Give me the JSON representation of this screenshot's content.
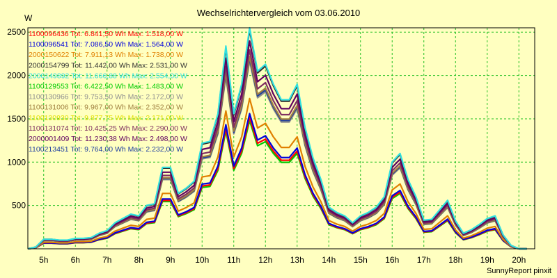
{
  "chart_data": {
    "type": "line",
    "title": "Wechselrichtervergleich vom 03.06.2010",
    "ylabel": "W",
    "footer": "SunnyReport pinxit",
    "x_tick_labels": [
      "5h",
      "6h",
      "7h",
      "8h",
      "9h",
      "10h",
      "11h",
      "12h",
      "13h",
      "14h",
      "15h",
      "16h",
      "17h",
      "18h",
      "19h",
      "20h"
    ],
    "x_ticks": [
      5,
      6,
      7,
      8,
      9,
      10,
      11,
      12,
      13,
      14,
      15,
      16,
      17,
      18,
      19,
      20
    ],
    "xlim": [
      4.5,
      20.5
    ],
    "ylim": [
      0,
      2550
    ],
    "y_ticks": [
      500,
      1000,
      1500,
      2000,
      2500
    ],
    "grid": true,
    "legend_position": "top-left",
    "x": [
      4.5,
      4.75,
      5.0,
      5.25,
      5.5,
      5.75,
      6.0,
      6.25,
      6.5,
      6.75,
      7.0,
      7.25,
      7.5,
      7.75,
      8.0,
      8.25,
      8.5,
      8.75,
      9.0,
      9.25,
      9.5,
      9.75,
      10.0,
      10.25,
      10.5,
      10.75,
      11.0,
      11.25,
      11.5,
      11.75,
      12.0,
      12.25,
      12.5,
      12.75,
      13.0,
      13.25,
      13.5,
      13.75,
      14.0,
      14.25,
      14.5,
      14.75,
      15.0,
      15.25,
      15.5,
      15.75,
      16.0,
      16.25,
      16.5,
      16.75,
      17.0,
      17.25,
      17.5,
      17.75,
      18.0,
      18.25,
      18.5,
      18.75,
      19.0,
      19.25,
      19.5,
      19.75,
      20.0,
      20.25
    ],
    "series": [
      {
        "name": "1100096436",
        "label": "1100096436 Tot: 6.841,50 Wh Max: 1.518,00 W",
        "color": "#ff0000",
        "scale": 0.594
      },
      {
        "name": "1100096541",
        "label": "1100096541 Tot: 7.086,50 Wh Max: 1.564,00 W",
        "color": "#0000dd",
        "scale": 0.612
      },
      {
        "name": "2000150622",
        "label": "2000150622 Tot: 7.911,13 Wh Max: 1.738,00 W",
        "color": "#e08000",
        "scale": 0.68
      },
      {
        "name": "2000154799",
        "label": "2000154799 Tot: 11.442,00 Wh Max: 2.531,00 W",
        "color": "#303030",
        "scale": 0.99
      },
      {
        "name": "2000149892",
        "label": "2000149892 Tot: 11.666,88 Wh Max: 2.554,00 W",
        "color": "#30e0e0",
        "scale": 1.0
      },
      {
        "name": "1100129553",
        "label": "1100129553 Tot: 6.422,50 Wh Max: 1.483,00 W",
        "color": "#00cc00",
        "scale": 0.58
      },
      {
        "name": "1100130966",
        "label": "1100130966 Tot: 9.753,50 Wh Max: 2.172,00 W",
        "color": "#909090",
        "scale": 0.85
      },
      {
        "name": "1100131006",
        "label": "1100131006 Tot: 9.967,00 Wh Max: 2.352,00 W",
        "color": "#a08040",
        "scale": 0.87
      },
      {
        "name": "1100130930",
        "label": "1100130930 Tot: 9.877,75 Wh Max: 2.171,00 W",
        "color": "#e0e000",
        "scale": 0.86
      },
      {
        "name": "1100131074",
        "label": "1100131074 Tot: 10.425,25 Wh Max: 2.290,00 W",
        "color": "#803060",
        "scale": 0.9
      },
      {
        "name": "2000001409",
        "label": "2000001409 Tot: 11.230,38 Wh Max: 2.498,00 W",
        "color": "#600060",
        "scale": 0.94
      },
      {
        "name": "1100213451",
        "label": "1100213451 Tot: 9.764,00 Wh Max: 2.232,00 W",
        "color": "#2040a0",
        "scale": 0.86
      }
    ],
    "reference_profile": [
      0,
      20,
      110,
      110,
      100,
      100,
      120,
      120,
      130,
      180,
      210,
      300,
      350,
      400,
      380,
      500,
      520,
      940,
      940,
      640,
      700,
      780,
      1220,
      1240,
      1560,
      2340,
      1560,
      1900,
      2550,
      2050,
      2130,
      1900,
      1720,
      1720,
      1900,
      1400,
      1050,
      800,
      480,
      420,
      380,
      300,
      380,
      420,
      480,
      600,
      1000,
      1100,
      800,
      600,
      330,
      340,
      450,
      560,
      320,
      180,
      220,
      280,
      350,
      380,
      160,
      40,
      0,
      0
    ]
  }
}
